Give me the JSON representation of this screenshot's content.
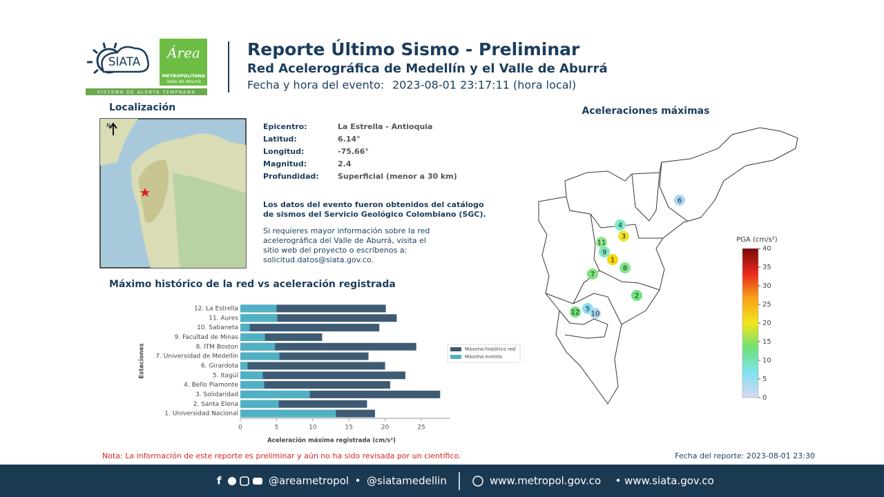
{
  "header": {
    "title": "Reporte Último Sismo - Preliminar",
    "subtitle": "Red Acelerográfica de Medellín y el Valle de Aburrá",
    "event_label": "Fecha y hora del evento:",
    "event_time": "2023-08-01 23:17:11 (hora local)"
  },
  "logos": {
    "siata": "SIATA",
    "siata_tagline": "SISTEMA DE ALERTA TEMPRANA",
    "area": "Área",
    "area_name": "METROPOLITANA",
    "area_region": "Valle de Aburrá"
  },
  "location": {
    "title": "Localización",
    "north": "N"
  },
  "details": [
    [
      "Epicentro:",
      "La Estrella - Antioquia"
    ],
    [
      "Latitud:",
      "6.14°"
    ],
    [
      "Longitud:",
      "-75.66°"
    ],
    [
      "Magnitud:",
      "2.4"
    ],
    [
      "Profundidad:",
      "Superficial (menor a 30 km)"
    ]
  ],
  "notes": {
    "source": [
      "Los datos del evento fueron obtenidos del catálogo",
      "de sismos del Servicio Geológico Colombiano (SGC)."
    ],
    "info": [
      "Si requieres mayor información sobre la red",
      "acelerográfica del Valle de Aburrá, visita el",
      "sitio web del proyecto o escríbenos a:",
      "solicitud.datos@siata.gov.co."
    ]
  },
  "chart_data": {
    "type": "bar",
    "orientation": "horizontal",
    "title": "Máximo histórico de la red vs aceleración registrada",
    "categories": [
      "12. La Estrella",
      "11. Aures",
      "10. Sabaneta",
      "9. Facultad de Minas",
      "8. ITM Boston",
      "7. Universidad de Medellín",
      "6. Girardota",
      "5. Itagüí",
      "4. Bello Piamonte",
      "3. Solidaridad",
      "2. Santa Elena",
      "1. Universidad Nacional"
    ],
    "series": [
      {
        "name": "Máximo histórico red",
        "color": "#3f5b73",
        "values": [
          20.1,
          21.6,
          19.2,
          11.3,
          24.3,
          17.7,
          20.0,
          22.8,
          20.7,
          27.6,
          17.5,
          18.6
        ]
      },
      {
        "name": "Máximo evento",
        "color": "#4fb1c3",
        "values": [
          5.0,
          5.1,
          1.3,
          3.4,
          4.8,
          5.4,
          1.0,
          3.1,
          3.3,
          9.6,
          5.3,
          13.2
        ]
      }
    ],
    "xlim": [
      0,
      29
    ],
    "xticks": [
      0,
      5,
      10,
      15,
      20,
      25
    ],
    "x_label": "Aceleración máxima registrada (cm/s²)",
    "y_label": "Estaciones",
    "legend": "right"
  },
  "map": {
    "title": "Aceleraciones máximas",
    "stations": [
      {
        "label": "1",
        "color": "#f3d80c"
      },
      {
        "label": "2",
        "color": "#6fe27c"
      },
      {
        "label": "3",
        "color": "#eee42c"
      },
      {
        "label": "4",
        "color": "#7fe9cc"
      },
      {
        "label": "5",
        "color": "#8adcf0"
      },
      {
        "label": "6",
        "color": "#a9d6f5"
      },
      {
        "label": "7",
        "color": "#7de27c"
      },
      {
        "label": "8",
        "color": "#80e58a"
      },
      {
        "label": "9",
        "color": "#80e8c2"
      },
      {
        "label": "10",
        "color": "#abd9f3"
      },
      {
        "label": "11",
        "color": "#90e88a"
      },
      {
        "label": "12",
        "color": "#74e07e"
      }
    ]
  },
  "colorbar": {
    "title": "PGA (cm/s²)",
    "lim": [
      0,
      40
    ],
    "ticks": [
      0,
      5,
      10,
      15,
      20,
      25,
      30,
      35,
      40
    ],
    "colors": [
      "#d9d6f2",
      "#7fe3f0",
      "#6fe07a",
      "#f2e51a",
      "#f8a21a",
      "#e8281c",
      "#7a0a0a"
    ]
  },
  "footer": {
    "note": "Nota: La información de este reporte es preliminar y aún no ha sido revisada por un científico.",
    "report_date": "Fecha del reporte: 2023-08-01 23:30",
    "social_1": "@areametropol",
    "social_2": "@siatamedellin",
    "web_1": "www.metropol.gov.co",
    "web_2": "www.siata.gov.co",
    "separator": "•"
  }
}
